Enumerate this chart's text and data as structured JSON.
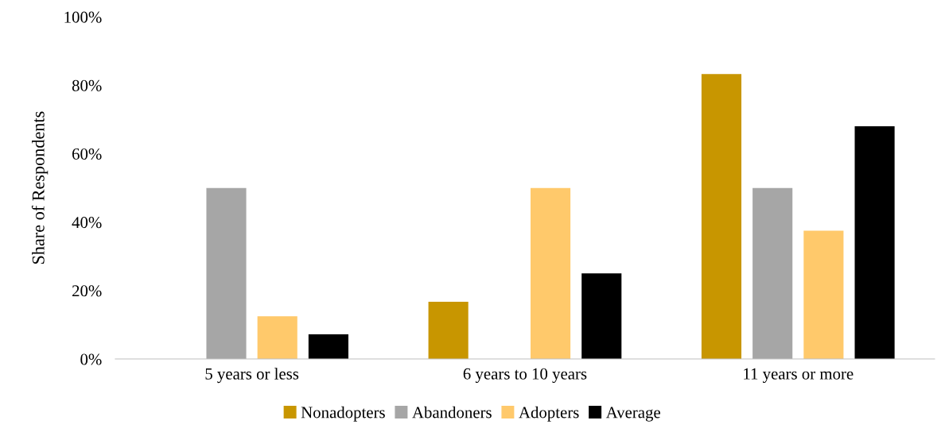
{
  "chart_data": {
    "type": "bar",
    "ylabel": "Share of Respondents",
    "categories": [
      "5 years or less",
      "6 years to 10 years",
      "11 years or more"
    ],
    "series": [
      {
        "name": "Nonadopters",
        "color": "#c89600",
        "values": [
          0,
          16.7,
          83.3
        ]
      },
      {
        "name": "Abandoners",
        "color": "#a6a6a6",
        "values": [
          50,
          0,
          50
        ]
      },
      {
        "name": "Adopters",
        "color": "#ffc96b",
        "values": [
          12.5,
          50,
          37.5
        ]
      },
      {
        "name": "Average",
        "color": "#000000",
        "values": [
          7.2,
          25,
          68
        ]
      }
    ],
    "ylim": [
      0,
      100
    ],
    "yticks": [
      {
        "value": 0,
        "label": "0%"
      },
      {
        "value": 20,
        "label": "20%"
      },
      {
        "value": 40,
        "label": "40%"
      },
      {
        "value": 60,
        "label": "60%"
      },
      {
        "value": 80,
        "label": "80%"
      },
      {
        "value": 100,
        "label": "100%"
      }
    ],
    "grid": false,
    "legend": "bottom"
  }
}
